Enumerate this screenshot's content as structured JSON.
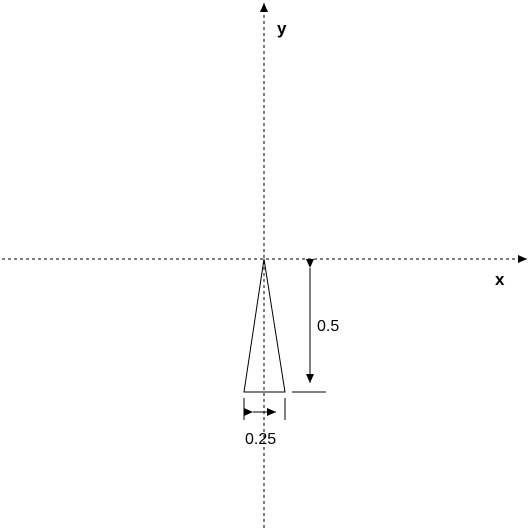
{
  "diagram": {
    "axes": {
      "x_label": "x",
      "y_label": "y"
    },
    "shape": {
      "type": "isosceles triangle",
      "height": 0.5,
      "base_width": 0.25
    },
    "dimensions": {
      "height_label": "0.5",
      "width_label": "0.25"
    },
    "colors": {
      "line": "#000000",
      "background": "#ffffff"
    }
  }
}
